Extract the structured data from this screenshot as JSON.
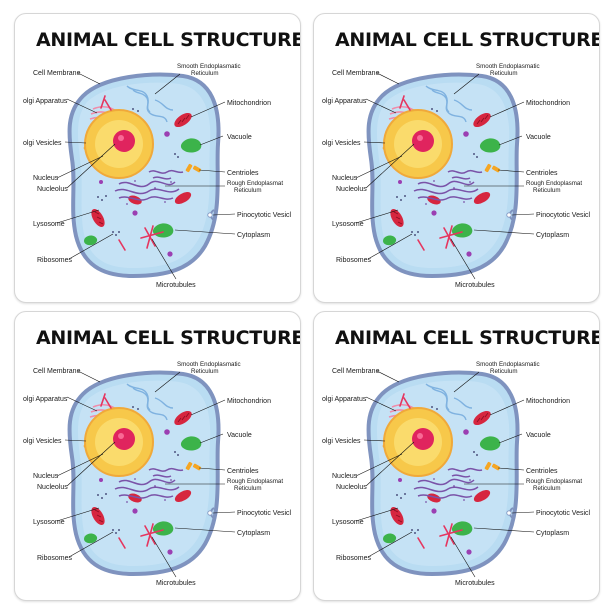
{
  "title": "ANIMAL CELL STRUCTURE",
  "labels": {
    "cell_membrane": "Cell Membrane",
    "golgi_apparatus": "olgi Apparatus",
    "golgi_vesicles": "olgi Vesicles",
    "nucleus": "Nucleus",
    "nucleolus": "Nucleolus",
    "lysosome": "Lysosome",
    "ribosomes": "Ribosomes",
    "microtubules": "Microtubules",
    "smooth_er_1": "Smooth Endoplasmatic",
    "smooth_er_2": "Reticulum",
    "mitochondrion": "Mitochondrion",
    "vacuole": "Vacuole",
    "centrioles": "Centrioles",
    "rough_er_1": "Rough Endoplasmat",
    "rough_er_2": "Reticulum",
    "pinocytotic": "Pinocytotic Vesicl",
    "cytoplasm": "Cytoplasm"
  },
  "colors": {
    "cytoplasm": "#b9dcf2",
    "membrane": "#7f93bf",
    "nucleus": "#f7c84a",
    "nucleus_core": "#fbe27a",
    "nucleolus": "#e0245e",
    "mitochondrion": "#d6263f",
    "vacuole": "#3cb34a",
    "rough_er": "#7a53a8",
    "smooth_er": "#7fb2e0",
    "golgi": "#f08caa",
    "microtubule": "#e5365f"
  }
}
